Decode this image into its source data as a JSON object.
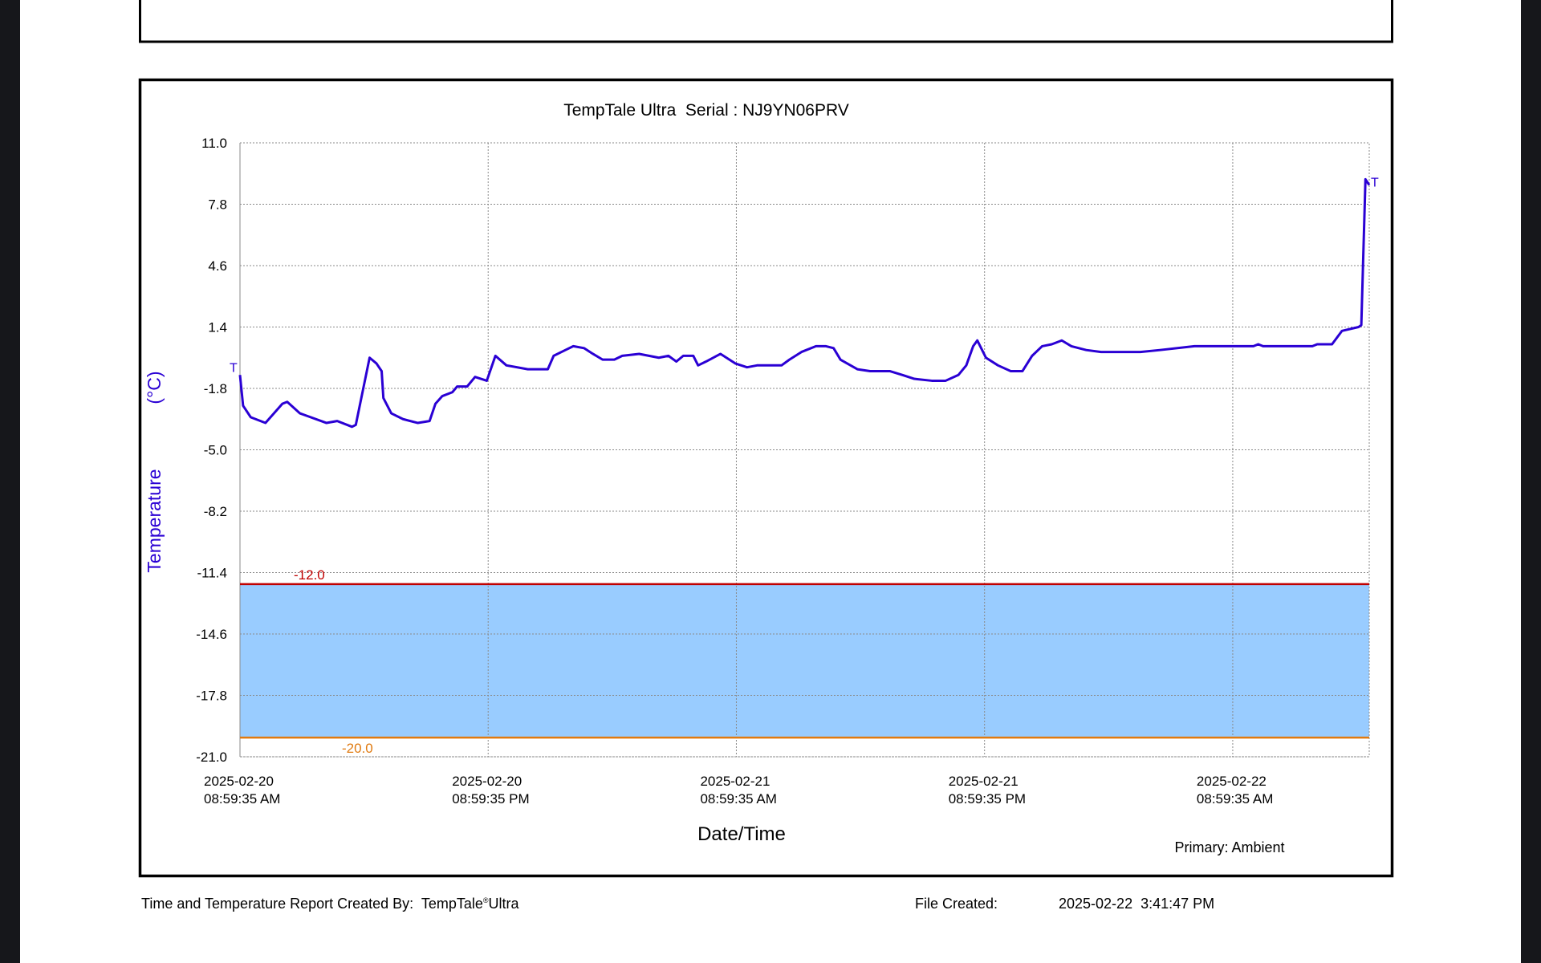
{
  "chart_data": {
    "type": "line",
    "title": "TempTale Ultra  Serial : NJ9YN06PRV",
    "xlabel": "Date/Time",
    "ylabel": "Temperature",
    "yunit": "(°C)",
    "legend": "Primary: Ambient",
    "start_marker": "T",
    "end_marker": "T",
    "ylim": [
      -21.0,
      11.0
    ],
    "yticks": [
      {
        "value": 11.0,
        "label": "11.0"
      },
      {
        "value": 7.8,
        "label": "7.8"
      },
      {
        "value": 4.6,
        "label": "4.6"
      },
      {
        "value": 1.4,
        "label": "1.4"
      },
      {
        "value": -1.8,
        "label": "-1.8"
      },
      {
        "value": -5.0,
        "label": "-5.0"
      },
      {
        "value": -8.2,
        "label": "-8.2"
      },
      {
        "value": -11.4,
        "label": "-11.4"
      },
      {
        "value": -14.6,
        "label": "-14.6"
      },
      {
        "value": -17.8,
        "label": "-17.8"
      },
      {
        "value": -21.0,
        "label": "-21.0"
      }
    ],
    "xlim": [
      "2025-02-20 08:59:35",
      "2025-02-22 15:35:35"
    ],
    "xticks": [
      {
        "value": "2025-02-20 08:59:35",
        "label": [
          "2025-02-20",
          "08:59:35 AM"
        ]
      },
      {
        "value": "2025-02-20 20:59:35",
        "label": [
          "2025-02-20",
          "08:59:35 PM"
        ]
      },
      {
        "value": "2025-02-21 08:59:35",
        "label": [
          "2025-02-21",
          "08:59:35 AM"
        ]
      },
      {
        "value": "2025-02-21 20:59:35",
        "label": [
          "2025-02-21",
          "08:59:35 PM"
        ]
      },
      {
        "value": "2025-02-22 08:59:35",
        "label": [
          "2025-02-22",
          "08:59:35 AM"
        ]
      }
    ],
    "grid": true,
    "thresholds": [
      {
        "value": -12.0,
        "label": "-12.0",
        "color": "#c00000"
      },
      {
        "value": -20.0,
        "label": "-20.0",
        "color": "#e07a10"
      }
    ],
    "band_color": "#99ccff",
    "series": [
      {
        "name": "Primary: Ambient",
        "color": "#2a00d4",
        "x": [
          "2025-02-20 08:59:35",
          "2025-02-20 09:08:35",
          "2025-02-20 09:30:35",
          "2025-02-20 10:13:35",
          "2025-02-20 11:02:35",
          "2025-02-20 11:16:35",
          "2025-02-20 11:53:35",
          "2025-02-20 13:10:35",
          "2025-02-20 13:41:35",
          "2025-02-20 14:24:35",
          "2025-02-20 14:35:35",
          "2025-02-20 15:15:35",
          "2025-02-20 15:35:35",
          "2025-02-20 15:50:35",
          "2025-02-20 15:55:35",
          "2025-02-20 16:18:35",
          "2025-02-20 16:52:35",
          "2025-02-20 17:35:35",
          "2025-02-20 18:09:35",
          "2025-02-20 18:26:35",
          "2025-02-20 18:46:35",
          "2025-02-20 19:15:35",
          "2025-02-20 19:29:35",
          "2025-02-20 19:58:35",
          "2025-02-20 20:21:35",
          "2025-02-20 20:55:35",
          "2025-02-20 21:20:35",
          "2025-02-20 21:52:35",
          "2025-02-20 22:54:35",
          "2025-02-20 23:52:35",
          "2025-02-21 00:09:35",
          "2025-02-21 00:43:35",
          "2025-02-21 01:06:35",
          "2025-02-21 01:37:35",
          "2025-02-21 02:03:35",
          "2025-02-21 02:31:35",
          "2025-02-21 03:05:35",
          "2025-02-21 03:28:35",
          "2025-02-21 04:17:35",
          "2025-02-21 05:14:35",
          "2025-02-21 05:42:35",
          "2025-02-21 06:05:35",
          "2025-02-21 06:25:35",
          "2025-02-21 06:54:35",
          "2025-02-21 07:08:35",
          "2025-02-21 07:31:35",
          "2025-02-21 08:13:35",
          "2025-02-21 08:56:35",
          "2025-02-21 09:30:35",
          "2025-02-21 09:59:35",
          "2025-02-21 11:10:35",
          "2025-02-21 11:33:35",
          "2025-02-21 12:08:35",
          "2025-02-21 12:50:35",
          "2025-02-21 13:19:35",
          "2025-02-21 13:41:35",
          "2025-02-21 14:01:35",
          "2025-02-21 14:50:35",
          "2025-02-21 15:27:35",
          "2025-02-21 16:24:35",
          "2025-02-21 17:01:35",
          "2025-02-21 17:35:35",
          "2025-02-21 18:26:35",
          "2025-02-21 19:06:35",
          "2025-02-21 19:43:35",
          "2025-02-21 20:06:35",
          "2025-02-21 20:26:35",
          "2025-02-21 20:38:35",
          "2025-02-21 21:03:35",
          "2025-02-21 21:38:35",
          "2025-02-21 22:15:35",
          "2025-02-21 22:49:35",
          "2025-02-21 23:17:35",
          "2025-02-21 23:46:35",
          "2025-02-22 00:14:35",
          "2025-02-22 00:43:35",
          "2025-02-22 01:11:35",
          "2025-02-22 01:54:35",
          "2025-02-22 02:37:35",
          "2025-02-22 04:31:35",
          "2025-02-22 05:28:35",
          "2025-02-22 07:08:35",
          "2025-02-22 09:59:35",
          "2025-02-22 10:13:35",
          "2025-02-22 10:27:35",
          "2025-02-22 12:50:35",
          "2025-02-22 13:04:35",
          "2025-02-22 13:47:35",
          "2025-02-22 14:16:35",
          "2025-02-22 15:04:35",
          "2025-02-22 15:12:35",
          "2025-02-22 15:24:35",
          "2025-02-22 15:35:35"
        ],
        "values": [
          -1.1,
          -2.7,
          -3.3,
          -3.6,
          -2.6,
          -2.5,
          -3.1,
          -3.6,
          -3.5,
          -3.8,
          -3.7,
          -0.2,
          -0.5,
          -0.9,
          -2.3,
          -3.1,
          -3.4,
          -3.6,
          -3.5,
          -2.6,
          -2.2,
          -2.0,
          -1.7,
          -1.7,
          -1.2,
          -1.4,
          -0.1,
          -0.6,
          -0.8,
          -0.8,
          -0.1,
          0.2,
          0.4,
          0.3,
          0.0,
          -0.3,
          -0.3,
          -0.1,
          0.0,
          -0.2,
          -0.1,
          -0.4,
          -0.1,
          -0.1,
          -0.6,
          -0.4,
          0.0,
          -0.5,
          -0.7,
          -0.6,
          -0.6,
          -0.3,
          0.1,
          0.4,
          0.4,
          0.3,
          -0.3,
          -0.8,
          -0.9,
          -0.9,
          -1.1,
          -1.3,
          -1.4,
          -1.4,
          -1.1,
          -0.6,
          0.4,
          0.7,
          -0.2,
          -0.6,
          -0.9,
          -0.9,
          -0.1,
          0.4,
          0.5,
          0.7,
          0.4,
          0.2,
          0.1,
          0.1,
          0.2,
          0.4,
          0.4,
          0.5,
          0.4,
          0.4,
          0.5,
          0.5,
          1.2,
          1.4,
          1.5,
          9.1,
          8.8
        ]
      }
    ]
  },
  "footer": {
    "created_by": "Time and Temperature Report Created By:  TempTale",
    "registered": "®",
    "product": "Ultra",
    "file_created_label": "File Created:",
    "file_created": "2025-02-22  3:41:47 PM"
  }
}
